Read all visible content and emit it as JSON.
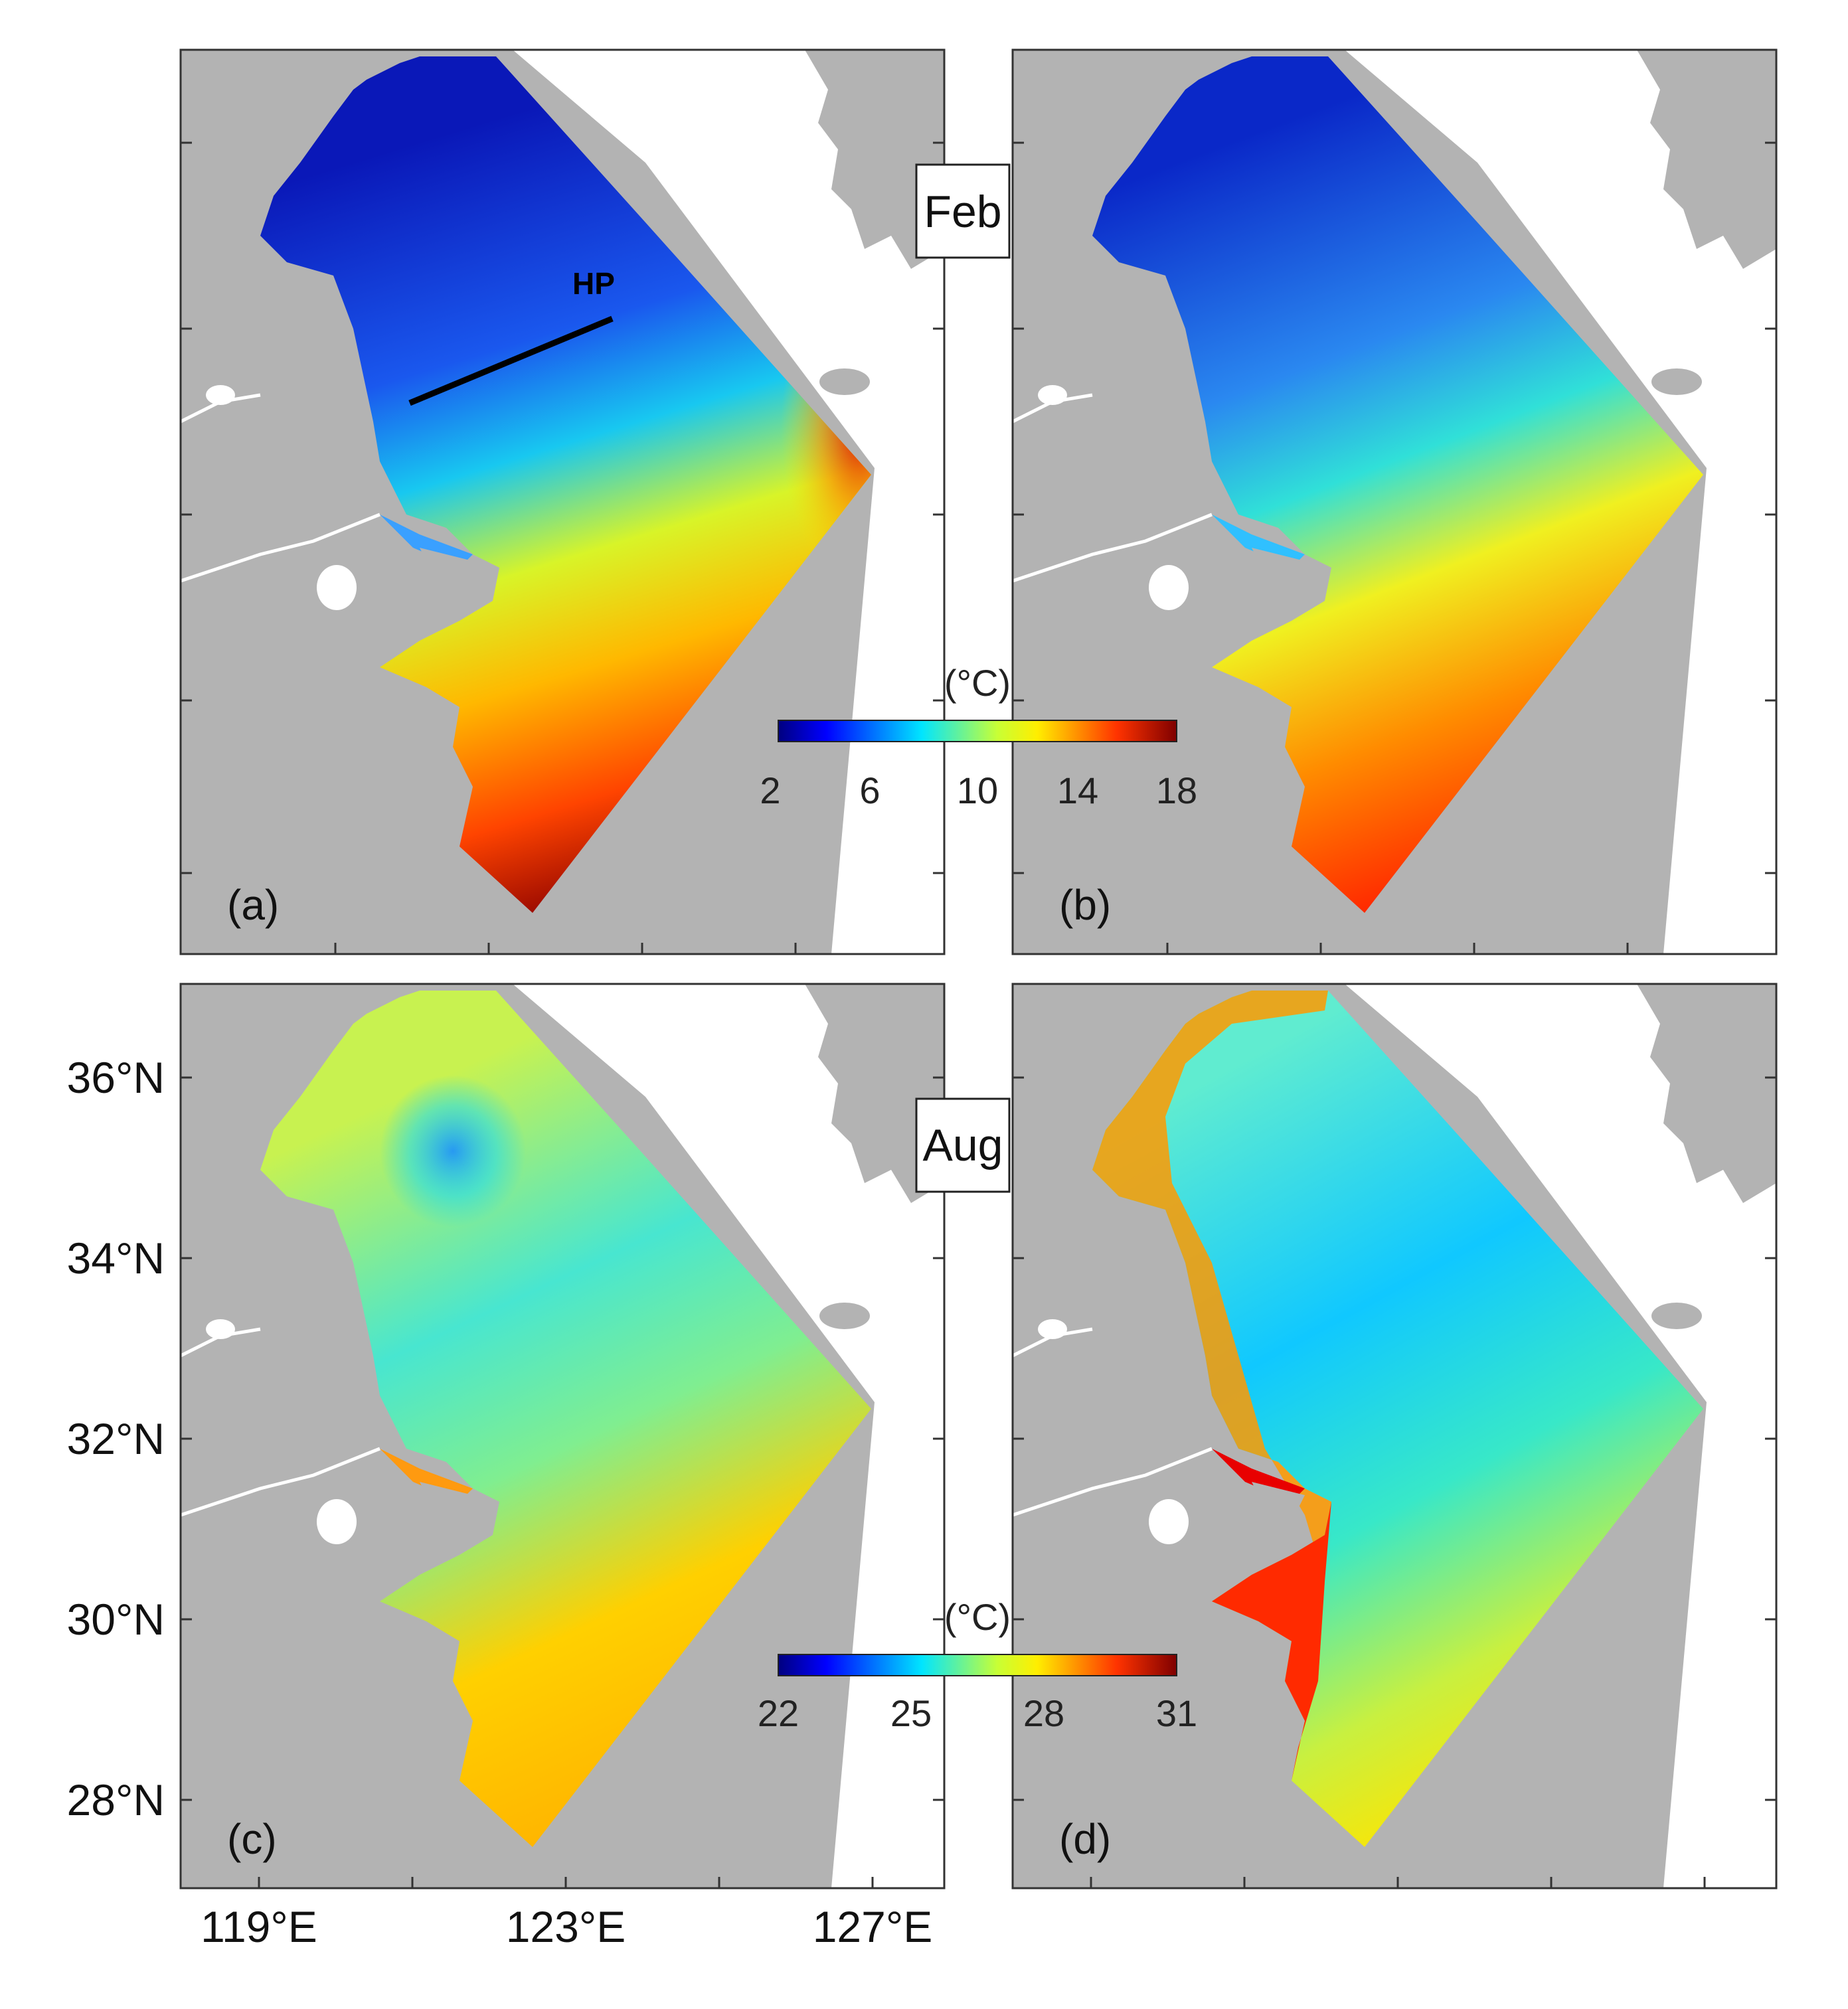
{
  "panels": {
    "a": {
      "letter": "(a)"
    },
    "b": {
      "letter": "(b)"
    },
    "c": {
      "letter": "(c)"
    },
    "d": {
      "letter": "(d)"
    }
  },
  "month_labels": {
    "top": "Feb",
    "bottom": "Aug"
  },
  "section_line_label": "HP",
  "colorbars": {
    "feb": {
      "unit": "(°C)",
      "ticks": [
        "2",
        "6",
        "10",
        "14",
        "18"
      ],
      "range": [
        2,
        18
      ]
    },
    "aug": {
      "unit": "(°C)",
      "ticks": [
        "22",
        "25",
        "28",
        "31"
      ],
      "range": [
        22,
        31
      ]
    }
  },
  "axes": {
    "lon_labels": [
      "119°E",
      "123°E",
      "127°E"
    ],
    "lat_labels": [
      "36°N",
      "34°N",
      "32°N",
      "30°N",
      "28°N"
    ]
  },
  "colors": {
    "land": "#b3b3b3",
    "ocean_white": "#ffffff",
    "cold": "#0a1aa0",
    "cyan": "#00e5ff",
    "yellow": "#f2f200",
    "orange": "#ff8a00",
    "hot": "#9b0000"
  }
}
